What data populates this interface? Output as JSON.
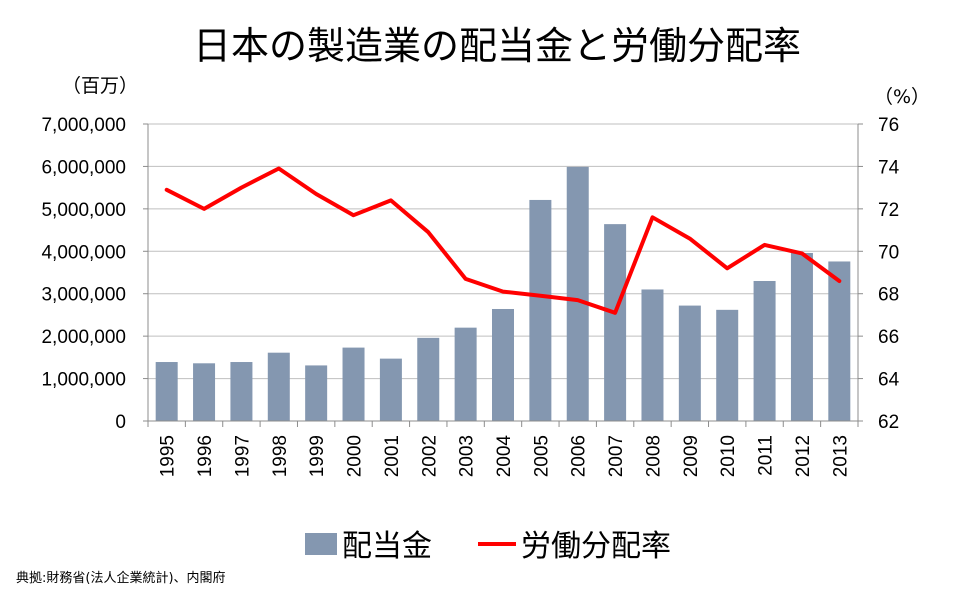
{
  "chart_data": {
    "type": "bar",
    "title": "日本の製造業の配当金と労働分配率",
    "categories": [
      "1995",
      "1996",
      "1997",
      "1998",
      "1999",
      "2000",
      "2001",
      "2002",
      "2003",
      "2004",
      "2005",
      "2006",
      "2007",
      "2008",
      "2009",
      "2010",
      "2011",
      "2012",
      "2013"
    ],
    "series": [
      {
        "name": "配当金",
        "type": "bar",
        "axis": "left",
        "color": "#8497B0",
        "values": [
          1390000,
          1360000,
          1390000,
          1610000,
          1310000,
          1730000,
          1470000,
          1960000,
          2200000,
          2640000,
          5210000,
          5990000,
          4640000,
          3100000,
          2720000,
          2620000,
          3300000,
          3960000,
          3760000
        ]
      },
      {
        "name": "労働分配率",
        "type": "line",
        "axis": "right",
        "color": "#FF0000",
        "values": [
          72.9,
          72.0,
          73.0,
          73.9,
          72.7,
          71.7,
          72.4,
          70.9,
          68.7,
          68.1,
          67.9,
          67.7,
          67.1,
          71.6,
          70.6,
          69.2,
          70.3,
          69.9,
          68.6
        ]
      }
    ],
    "y_left": {
      "unit_label": "（百万）",
      "min": 0,
      "max": 7000000,
      "ticks": [
        0,
        1000000,
        2000000,
        3000000,
        4000000,
        5000000,
        6000000,
        7000000
      ],
      "tick_labels": [
        "0",
        "1,000,000",
        "2,000,000",
        "3,000,000",
        "4,000,000",
        "5,000,000",
        "6,000,000",
        "7,000,000"
      ]
    },
    "y_right": {
      "unit_label": "（%）",
      "min": 62,
      "max": 76,
      "ticks": [
        62,
        64,
        66,
        68,
        70,
        72,
        74,
        76
      ],
      "tick_labels": [
        "62",
        "64",
        "66",
        "68",
        "70",
        "72",
        "74",
        "76"
      ]
    },
    "grid": true,
    "gridline_color": "#BFBFBF",
    "legend_position": "bottom",
    "source": "典拠:財務省(法人企業統計)、内閣府"
  }
}
